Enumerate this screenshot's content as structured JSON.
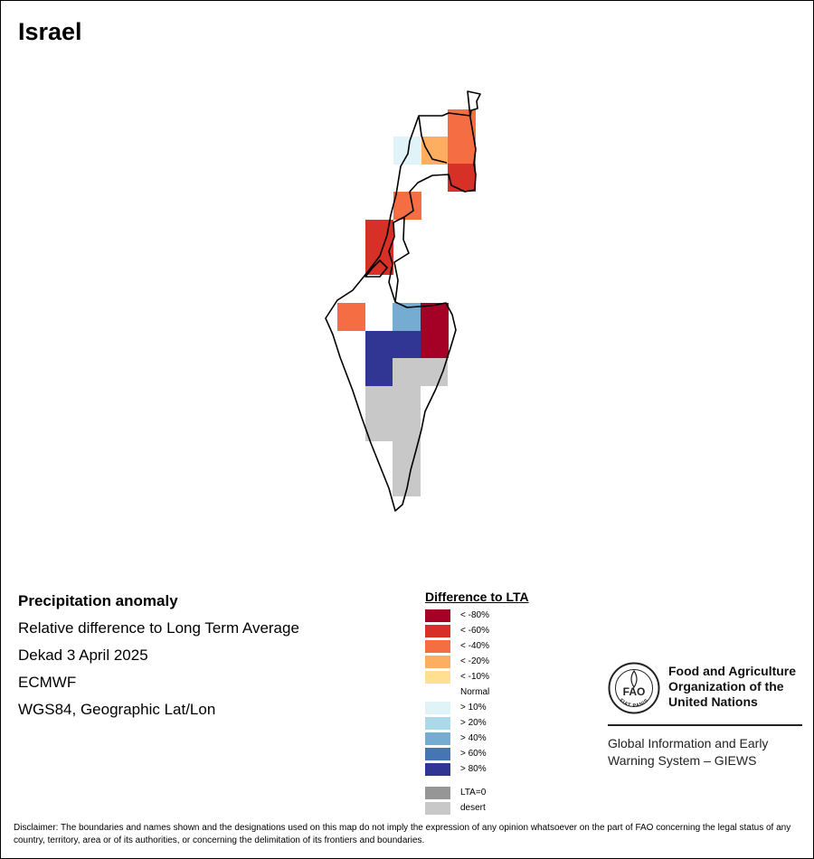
{
  "map": {
    "title": "Israel",
    "grid": [
      {
        "value": "<-80%",
        "color": "#a50026"
      },
      {
        "value": "<-60%",
        "color": "#d73027"
      },
      {
        "value": "<-40%",
        "color": "#f46d43"
      },
      {
        "value": "<-20%",
        "color": "#fdae61"
      },
      {
        "value": ">10%",
        "color": "#e0f3f8"
      },
      {
        "value": ">40%",
        "color": "#74add1"
      },
      {
        "value": ">80%",
        "color": "#313695"
      },
      {
        "value": "desert",
        "color": "#c8c8c8"
      }
    ]
  },
  "info": {
    "heading": "Precipitation anomaly",
    "subtitle": "Relative difference to Long Term Average",
    "period": "Dekad 3 April 2025",
    "source": "ECMWF",
    "projection": "WGS84, Geographic Lat/Lon"
  },
  "legend": {
    "title": "Difference to LTA",
    "items": [
      {
        "label": "< -80%",
        "color": "#a50026"
      },
      {
        "label": "< -60%",
        "color": "#d73027"
      },
      {
        "label": "< -40%",
        "color": "#f46d43"
      },
      {
        "label": "< -20%",
        "color": "#fdae61"
      },
      {
        "label": "< -10%",
        "color": "#fee090"
      },
      {
        "label": "Normal",
        "color": "#ffffff"
      },
      {
        "label": "> 10%",
        "color": "#e0f3f8"
      },
      {
        "label": "> 20%",
        "color": "#abd9e9"
      },
      {
        "label": "> 40%",
        "color": "#74add1"
      },
      {
        "label": "> 60%",
        "color": "#4575b4"
      },
      {
        "label": "> 80%",
        "color": "#313695"
      }
    ],
    "extra": [
      {
        "label": "LTA=0",
        "color": "#969696"
      },
      {
        "label": "desert",
        "color": "#c8c8c8"
      }
    ]
  },
  "fao": {
    "logo_letters": "FAO",
    "logo_motto": "FIAT PANIS",
    "name_line1": "Food and Agriculture",
    "name_line2": "Organization of the",
    "name_line3": "United Nations",
    "giews_line1": "Global Information and Early",
    "giews_line2": "Warning System – GIEWS"
  },
  "disclaimer": "Disclaimer: The boundaries and names shown and the designations used on this map do not imply the expression of any opinion whatsoever on the part of FAO concerning the legal status of any country, territory, area or of its authorities, or concerning the delimitation of its frontiers and boundaries."
}
